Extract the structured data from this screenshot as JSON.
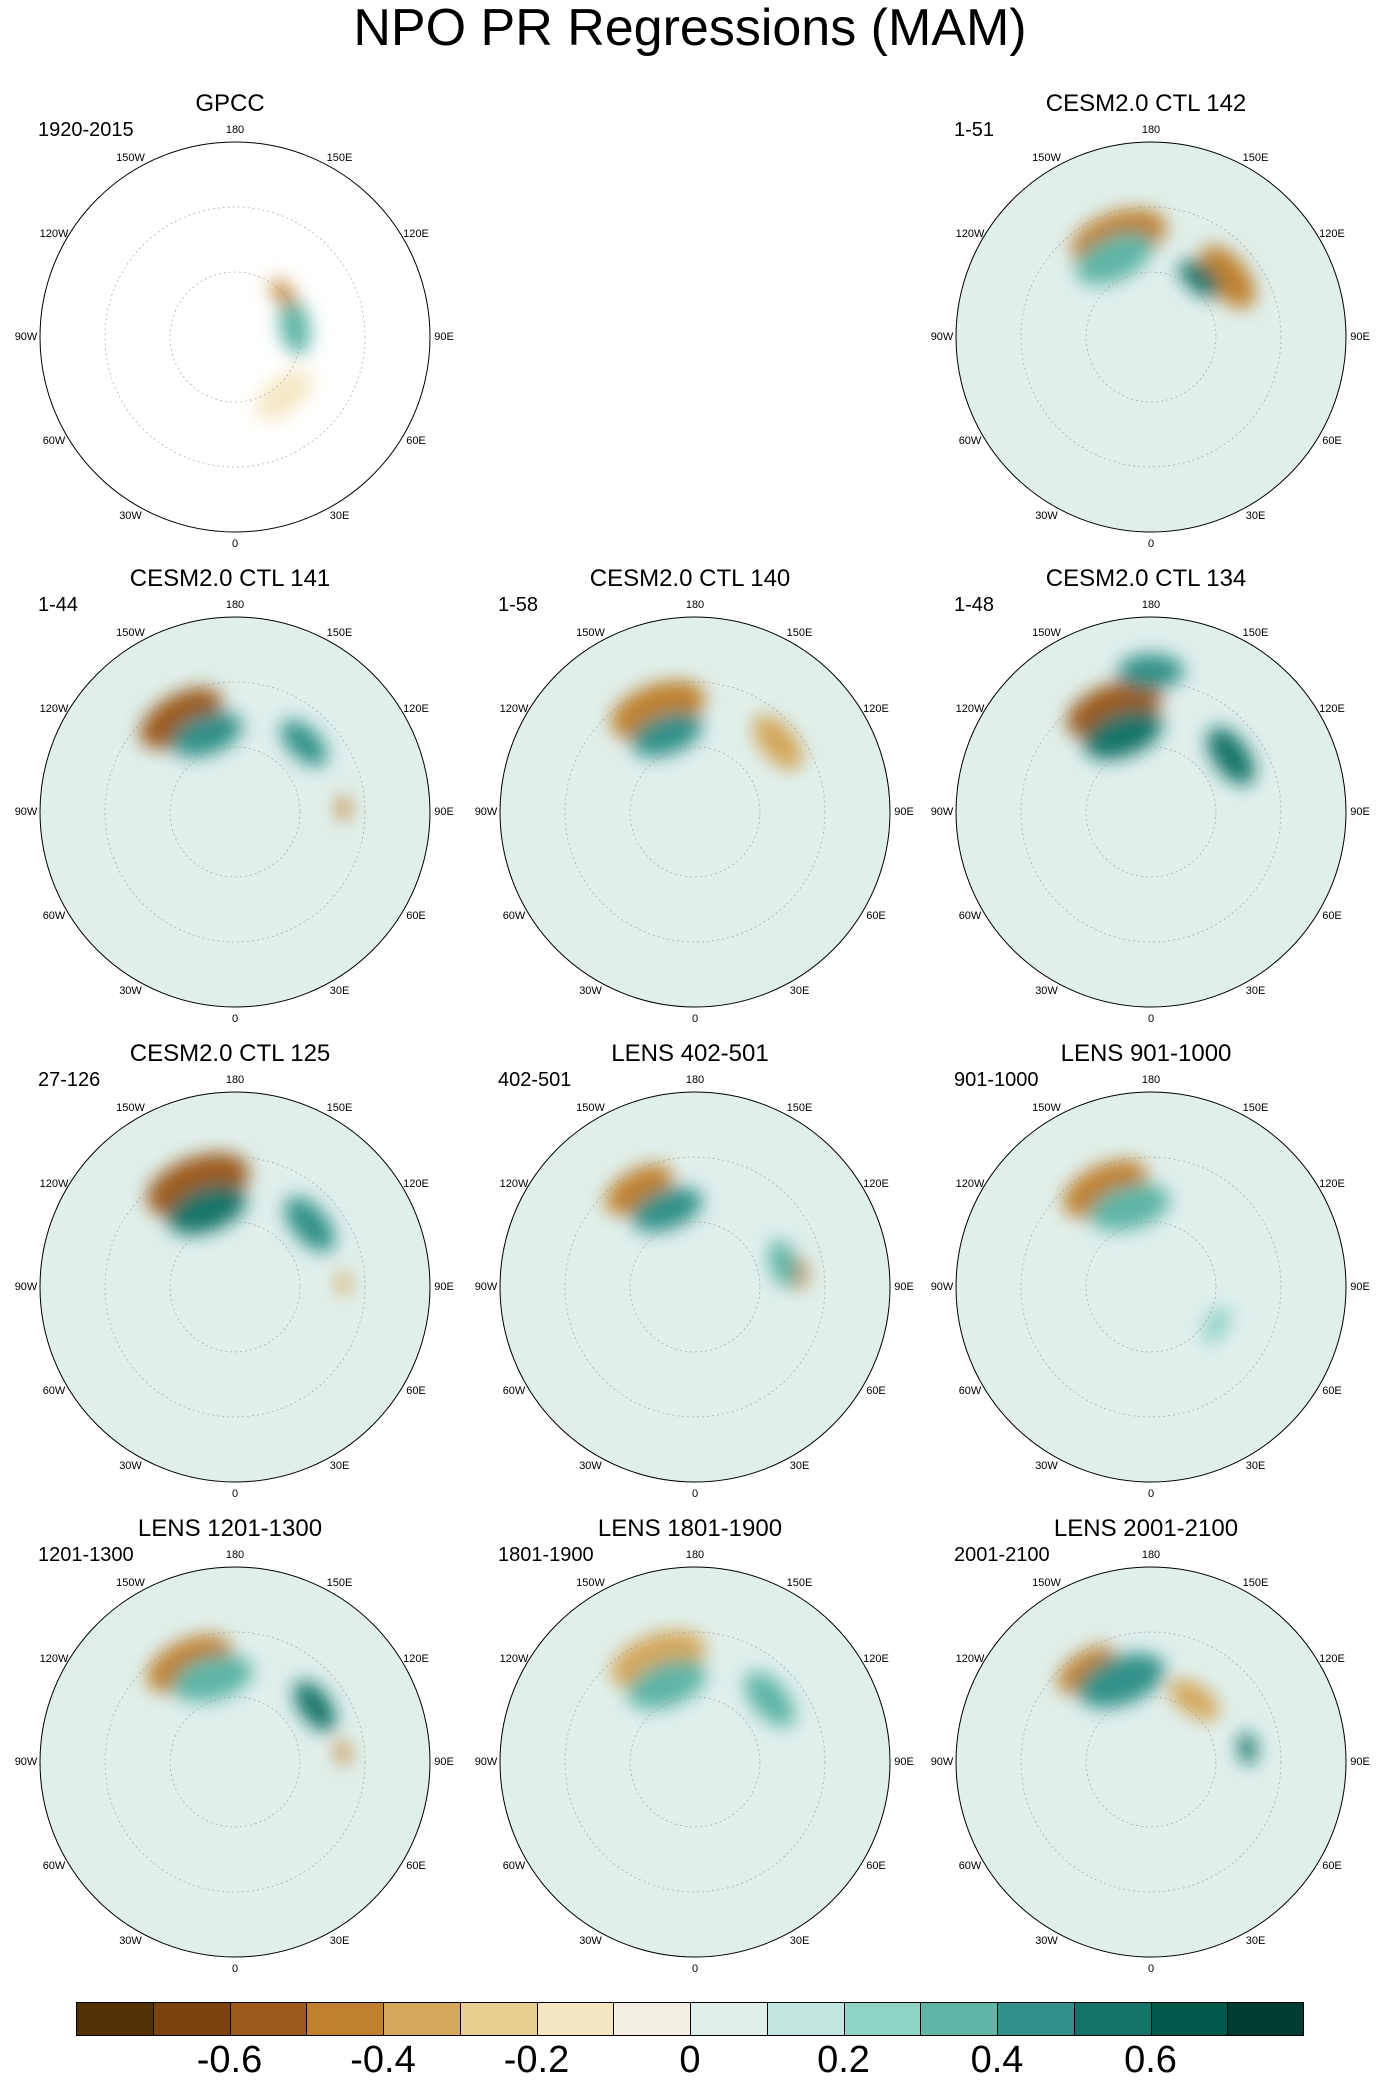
{
  "title": "NPO PR Regressions (MAM)",
  "chart_data": {
    "type": "heatmap",
    "projection": "north polar stereographic",
    "variable": "precipitation regression on NPO",
    "season": "MAM",
    "lon_labels": [
      "180",
      "150E",
      "120E",
      "90E",
      "60E",
      "30E",
      "0",
      "30W",
      "60W",
      "90W",
      "120W",
      "150W"
    ],
    "panels": [
      {
        "title": "GPCC",
        "period": "1920-2015",
        "row": 0,
        "col": 0,
        "features": [
          {
            "lat": 62,
            "lon": 100,
            "v": 0.35,
            "r": 7
          },
          {
            "lat": 60,
            "lon": 132,
            "v": -0.45,
            "r": 4
          },
          {
            "lat": 55,
            "lon": 40,
            "v": -0.15,
            "r": 8
          }
        ]
      },
      {
        "title": "CESM2.0 CTL 142",
        "period": "1-51",
        "row": 0,
        "col": 2,
        "features": [
          {
            "lat": 42,
            "lon": -162,
            "v": -0.5,
            "r": 12
          },
          {
            "lat": 50,
            "lon": -155,
            "v": 0.3,
            "r": 10
          },
          {
            "lat": 45,
            "lon": 128,
            "v": -0.45,
            "r": 9
          },
          {
            "lat": 55,
            "lon": 140,
            "v": 0.55,
            "r": 6
          }
        ]
      },
      {
        "title": "CESM2.0 CTL 141",
        "period": "1-44",
        "row": 1,
        "col": 0,
        "features": [
          {
            "lat": 40,
            "lon": -150,
            "v": -0.6,
            "r": 11
          },
          {
            "lat": 52,
            "lon": -160,
            "v": 0.45,
            "r": 9
          },
          {
            "lat": 45,
            "lon": 135,
            "v": 0.45,
            "r": 7
          },
          {
            "lat": 40,
            "lon": 92,
            "v": -0.45,
            "r": 3
          }
        ]
      },
      {
        "title": "CESM2.0 CTL 140",
        "period": "1-58",
        "row": 1,
        "col": 1,
        "features": [
          {
            "lat": 40,
            "lon": -160,
            "v": -0.45,
            "r": 12
          },
          {
            "lat": 52,
            "lon": -160,
            "v": 0.45,
            "r": 9
          },
          {
            "lat": 40,
            "lon": 130,
            "v": -0.4,
            "r": 8
          }
        ]
      },
      {
        "title": "CESM2.0 CTL 134",
        "period": "1-48",
        "row": 1,
        "col": 2,
        "features": [
          {
            "lat": 40,
            "lon": -160,
            "v": -0.6,
            "r": 12
          },
          {
            "lat": 52,
            "lon": -160,
            "v": 0.55,
            "r": 10
          },
          {
            "lat": 45,
            "lon": 125,
            "v": 0.55,
            "r": 8
          },
          {
            "lat": 25,
            "lon": 180,
            "v": 0.4,
            "r": 8
          }
        ]
      },
      {
        "title": "CESM2.0 CTL 125",
        "period": "27-126",
        "row": 2,
        "col": 0,
        "features": [
          {
            "lat": 40,
            "lon": -160,
            "v": -0.55,
            "r": 13
          },
          {
            "lat": 52,
            "lon": -160,
            "v": 0.5,
            "r": 10
          },
          {
            "lat": 45,
            "lon": 130,
            "v": 0.45,
            "r": 8
          },
          {
            "lat": 40,
            "lon": 92,
            "v": -0.4,
            "r": 3
          }
        ]
      },
      {
        "title": "LENS 402-501",
        "period": "402-501",
        "row": 2,
        "col": 1,
        "features": [
          {
            "lat": 38,
            "lon": -150,
            "v": -0.5,
            "r": 9
          },
          {
            "lat": 52,
            "lon": -160,
            "v": 0.45,
            "r": 9
          },
          {
            "lat": 42,
            "lon": 98,
            "v": -0.5,
            "r": 4
          },
          {
            "lat": 48,
            "lon": 105,
            "v": 0.35,
            "r": 6
          }
        ]
      },
      {
        "title": "LENS 901-1000",
        "period": "901-1000",
        "row": 2,
        "col": 2,
        "features": [
          {
            "lat": 40,
            "lon": -155,
            "v": -0.45,
            "r": 11
          },
          {
            "lat": 52,
            "lon": -165,
            "v": 0.3,
            "r": 10
          },
          {
            "lat": 55,
            "lon": 60,
            "v": 0.25,
            "r": 5
          }
        ]
      },
      {
        "title": "LENS 1201-1300",
        "period": "1201-1300",
        "row": 3,
        "col": 0,
        "features": [
          {
            "lat": 40,
            "lon": -155,
            "v": -0.45,
            "r": 11
          },
          {
            "lat": 50,
            "lon": -165,
            "v": 0.3,
            "r": 10
          },
          {
            "lat": 45,
            "lon": 125,
            "v": 0.5,
            "r": 7
          },
          {
            "lat": 40,
            "lon": 95,
            "v": -0.5,
            "r": 3
          }
        ]
      },
      {
        "title": "LENS 1801-1900",
        "period": "1801-1900",
        "row": 3,
        "col": 1,
        "features": [
          {
            "lat": 40,
            "lon": -160,
            "v": -0.4,
            "r": 12
          },
          {
            "lat": 52,
            "lon": -160,
            "v": 0.3,
            "r": 10
          },
          {
            "lat": 45,
            "lon": 130,
            "v": 0.3,
            "r": 8
          }
        ]
      },
      {
        "title": "LENS 2001-2100",
        "period": "2001-2100",
        "row": 3,
        "col": 2,
        "features": [
          {
            "lat": 38,
            "lon": -145,
            "v": -0.5,
            "r": 8
          },
          {
            "lat": 50,
            "lon": -160,
            "v": 0.4,
            "r": 11
          },
          {
            "lat": 55,
            "lon": 145,
            "v": -0.35,
            "r": 7
          },
          {
            "lat": 45,
            "lon": 98,
            "v": 0.5,
            "r": 4
          }
        ]
      }
    ],
    "colorbar": {
      "levels": [
        -0.7,
        -0.6,
        -0.5,
        -0.4,
        -0.3,
        -0.2,
        -0.1,
        0,
        0.1,
        0.2,
        0.3,
        0.4,
        0.5,
        0.6,
        0.7
      ],
      "colors": [
        "#543005",
        "#7a4310",
        "#9c5b1a",
        "#bf812d",
        "#d4a75b",
        "#e8cf91",
        "#f5e7c3",
        "#f4efe3",
        "#e0efec",
        "#c3e7e0",
        "#8fd2c6",
        "#5fb5a6",
        "#30918a",
        "#127469",
        "#005a4b",
        "#003c30"
      ],
      "tick_values": [
        -0.6,
        -0.4,
        -0.2,
        0,
        0.2,
        0.4,
        0.6
      ],
      "tick_labels": [
        "-0.6",
        "-0.4",
        "-0.2",
        "0",
        "0.2",
        "0.4",
        "0.6"
      ]
    }
  }
}
